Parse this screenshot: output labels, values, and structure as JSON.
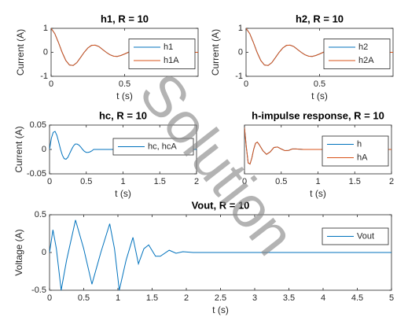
{
  "watermark": "Solution",
  "chart_data": [
    {
      "type": "line",
      "title": "h1, R = 10",
      "xlabel": "t (s)",
      "ylabel": "Current (A)",
      "x": [
        0,
        0.025,
        0.05,
        0.075,
        0.1,
        0.125,
        0.15,
        0.175,
        0.2,
        0.225,
        0.25,
        0.275,
        0.3,
        0.325,
        0.35,
        0.375,
        0.4,
        0.425,
        0.45,
        0.475,
        0.5,
        0.525,
        0.55,
        0.575,
        0.6,
        0.625,
        0.65,
        0.675,
        0.7,
        0.725,
        0.75,
        0.875,
        1
      ],
      "series": [
        {
          "name": "h1",
          "color": "#0072bd",
          "values": [
            1,
            0.78,
            0.41,
            0,
            -0.34,
            -0.53,
            -0.55,
            -0.43,
            -0.22,
            0,
            0.18,
            0.29,
            0.3,
            0.24,
            0.12,
            0,
            -0.1,
            -0.16,
            -0.17,
            -0.13,
            -0.07,
            0,
            0.06,
            0.09,
            0.09,
            0.07,
            0.04,
            0,
            -0.03,
            -0.05,
            -0.05,
            0,
            0
          ]
        },
        {
          "name": "h1A",
          "color": "#d95319",
          "values": [
            1,
            0.78,
            0.41,
            0,
            -0.34,
            -0.53,
            -0.55,
            -0.43,
            -0.22,
            0,
            0.18,
            0.29,
            0.3,
            0.24,
            0.12,
            0,
            -0.1,
            -0.16,
            -0.17,
            -0.13,
            -0.07,
            0,
            0.06,
            0.09,
            0.09,
            0.07,
            0.04,
            0,
            -0.03,
            -0.05,
            -0.05,
            0,
            0
          ]
        }
      ],
      "xlim": [
        0,
        1
      ],
      "xticks": [
        0,
        0.5
      ],
      "ylim": [
        -1,
        1
      ],
      "yticks": [
        -1,
        0,
        1
      ],
      "legend": "east"
    },
    {
      "type": "line",
      "title": "h2, R = 10",
      "xlabel": "t (s)",
      "ylabel": "Current (A)",
      "x": [
        0,
        0.025,
        0.05,
        0.075,
        0.1,
        0.125,
        0.15,
        0.175,
        0.2,
        0.225,
        0.25,
        0.275,
        0.3,
        0.325,
        0.35,
        0.375,
        0.4,
        0.425,
        0.45,
        0.475,
        0.5,
        0.525,
        0.55,
        0.575,
        0.6,
        0.625,
        0.65,
        0.675,
        0.7,
        0.725,
        0.75,
        0.875,
        1
      ],
      "series": [
        {
          "name": "h2",
          "color": "#0072bd",
          "values": [
            1,
            0.78,
            0.41,
            0,
            -0.34,
            -0.53,
            -0.55,
            -0.43,
            -0.22,
            0,
            0.18,
            0.29,
            0.3,
            0.24,
            0.12,
            0,
            -0.1,
            -0.16,
            -0.17,
            -0.13,
            -0.07,
            0,
            0.06,
            0.09,
            0.09,
            0.07,
            0.04,
            0,
            -0.03,
            -0.05,
            -0.05,
            0,
            0
          ]
        },
        {
          "name": "h2A",
          "color": "#d95319",
          "values": [
            1,
            0.78,
            0.41,
            0,
            -0.34,
            -0.53,
            -0.55,
            -0.43,
            -0.22,
            0,
            0.18,
            0.29,
            0.3,
            0.24,
            0.12,
            0,
            -0.1,
            -0.16,
            -0.17,
            -0.13,
            -0.07,
            0,
            0.06,
            0.09,
            0.09,
            0.07,
            0.04,
            0,
            -0.03,
            -0.05,
            -0.05,
            0,
            0
          ]
        }
      ],
      "xlim": [
        0,
        1
      ],
      "xticks": [
        0,
        0.5
      ],
      "ylim": [
        -1,
        1
      ],
      "yticks": [
        -1,
        0,
        1
      ],
      "legend": "east"
    },
    {
      "type": "line",
      "title": "hc, R = 10",
      "xlabel": "t (s)",
      "ylabel": "Current (A)",
      "x": [
        0,
        0.025,
        0.05,
        0.075,
        0.1,
        0.125,
        0.15,
        0.175,
        0.2,
        0.225,
        0.25,
        0.275,
        0.3,
        0.325,
        0.35,
        0.375,
        0.4,
        0.425,
        0.45,
        0.475,
        0.5,
        0.525,
        0.55,
        0.575,
        0.6,
        0.8,
        2
      ],
      "series": [
        {
          "name": "hc, hcA",
          "color": "#0072bd",
          "values": [
            0,
            0.023,
            0.035,
            0.037,
            0.029,
            0.015,
            0,
            -0.012,
            -0.019,
            -0.02,
            -0.016,
            -0.008,
            0,
            0.007,
            0.011,
            0.011,
            0.009,
            0.005,
            0,
            -0.004,
            -0.006,
            -0.006,
            -0.005,
            -0.003,
            0,
            0,
            0
          ]
        }
      ],
      "xlim": [
        0,
        2
      ],
      "xticks": [
        0,
        0.5,
        1,
        1.5,
        2
      ],
      "ylim": [
        -0.05,
        0.05
      ],
      "yticks": [
        -0.05,
        0,
        0.05
      ],
      "legend": "northeast"
    },
    {
      "type": "line",
      "title": "h-impulse response, R = 10",
      "xlabel": "t (s)",
      "x": [
        0,
        0.025,
        0.05,
        0.075,
        0.1,
        0.125,
        0.15,
        0.175,
        0.2,
        0.25,
        0.3,
        0.35,
        0.4,
        0.45,
        0.5,
        0.55,
        0.6,
        0.65,
        0.7,
        0.8,
        2
      ],
      "series": [
        {
          "name": "h",
          "color": "#0072bd",
          "values": [
            0.9,
            0.1,
            -0.55,
            -0.6,
            -0.35,
            0,
            0.25,
            0.3,
            0.2,
            -0.05,
            -0.2,
            -0.1,
            0.08,
            0.1,
            0.02,
            -0.05,
            -0.04,
            0.02,
            0.02,
            0,
            0
          ]
        },
        {
          "name": "hA",
          "color": "#d95319",
          "values": [
            0.9,
            0.1,
            -0.55,
            -0.6,
            -0.35,
            0,
            0.25,
            0.3,
            0.2,
            -0.05,
            -0.2,
            -0.1,
            0.08,
            0.1,
            0.02,
            -0.05,
            -0.04,
            0.02,
            0.02,
            0,
            0
          ]
        }
      ],
      "xlim": [
        0,
        2
      ],
      "xticks": [
        0,
        0.5,
        1,
        1.5,
        2
      ],
      "ylim": [
        -1,
        1
      ],
      "legend": "east"
    },
    {
      "type": "line",
      "title": "Vout, R = 10",
      "xlabel": "t (s)",
      "ylabel": "Voltage (A)",
      "x": [
        0,
        0.05,
        0.1,
        0.17,
        0.25,
        0.38,
        0.5,
        0.62,
        0.75,
        0.88,
        0.95,
        1.02,
        1.12,
        1.22,
        1.3,
        1.38,
        1.45,
        1.55,
        1.62,
        1.75,
        1.85,
        1.95,
        2.1,
        5
      ],
      "series": [
        {
          "name": "Vout",
          "color": "#0072bd",
          "values": [
            0,
            0.3,
            0.05,
            -0.5,
            -0.1,
            0.43,
            0.05,
            -0.42,
            0,
            0.38,
            0.05,
            -0.5,
            -0.1,
            0.2,
            -0.15,
            0.05,
            0.1,
            -0.05,
            -0.05,
            0.03,
            -0.01,
            0.01,
            0,
            0
          ]
        }
      ],
      "xlim": [
        0,
        5
      ],
      "xticks": [
        0,
        0.5,
        1,
        1.5,
        2,
        2.5,
        3,
        3.5,
        4,
        4.5,
        5
      ],
      "ylim": [
        -0.5,
        0.5
      ],
      "yticks": [
        -0.5,
        0,
        0.5
      ],
      "legend": "northeast"
    }
  ]
}
